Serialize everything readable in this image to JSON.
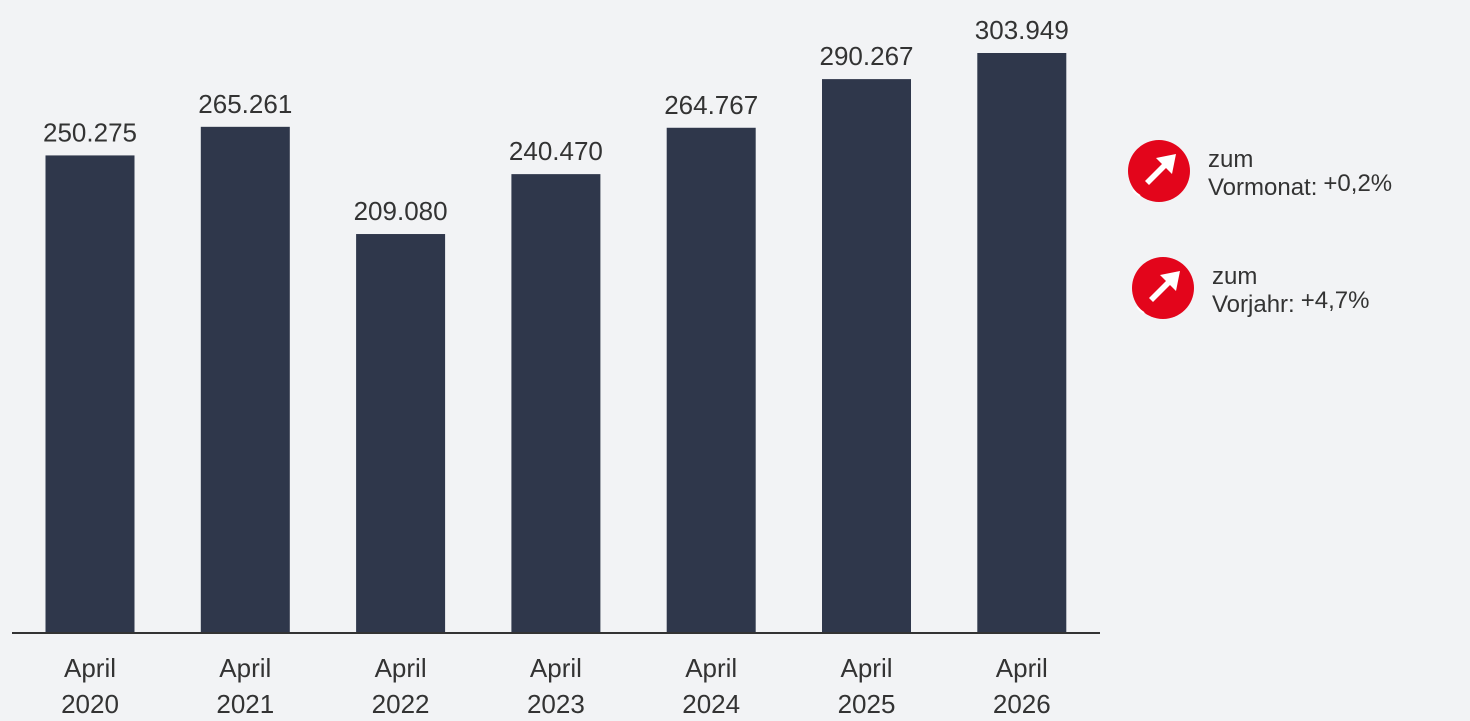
{
  "chart_data": {
    "type": "bar",
    "categories": [
      [
        "April",
        "2020"
      ],
      [
        "April",
        "2021"
      ],
      [
        "April",
        "2022"
      ],
      [
        "April",
        "2023"
      ],
      [
        "April",
        "2024"
      ],
      [
        "April",
        "2025"
      ],
      [
        "April",
        "2026"
      ]
    ],
    "values": [
      250275,
      265261,
      209080,
      240470,
      264767,
      290267,
      303949
    ],
    "value_labels": [
      "250.275",
      "265.261",
      "209.080",
      "240.470",
      "264.767",
      "290.267",
      "303.949"
    ],
    "title": "",
    "xlabel": "",
    "ylabel": "",
    "ylim": [
      0,
      313000
    ],
    "grid": false,
    "bar_color": "#2f374b",
    "axis_color": "#333333"
  },
  "badges": {
    "month": {
      "line1": "zum",
      "label": "Vormonat:",
      "value": "+0,2%",
      "icon": "arrow-up-right-icon"
    },
    "year": {
      "line1": "zum",
      "label": "Vorjahr:",
      "value": "+4,7%",
      "icon": "arrow-up-right-icon"
    },
    "color": "#e3051b"
  }
}
